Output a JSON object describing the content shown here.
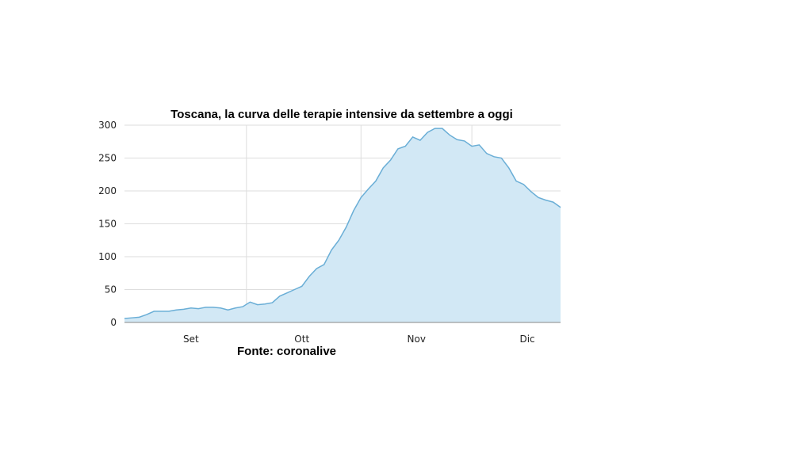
{
  "source_label": "Fonte: coronalive",
  "chart_data": {
    "type": "area",
    "title": "Toscana, la curva delle terapie intensive da settembre a oggi",
    "xlabel": "",
    "ylabel": "",
    "ylim": [
      0,
      300
    ],
    "yticks": [
      0,
      50,
      100,
      150,
      200,
      250,
      300
    ],
    "yticks_labels": [
      "0",
      "50",
      "100",
      "150",
      "200",
      "250",
      "300"
    ],
    "xticks": [
      "2020-09-01",
      "2020-10-01",
      "2020-11-01",
      "2020-12-01"
    ],
    "xticks_labels": [
      "Set",
      "Ott",
      "Nov",
      "Dic"
    ],
    "grid": true,
    "color_line": "#6aaed6",
    "color_fill": "#d2e8f5",
    "x": [
      "2020-08-14",
      "2020-08-16",
      "2020-08-18",
      "2020-08-20",
      "2020-08-22",
      "2020-08-24",
      "2020-08-26",
      "2020-08-28",
      "2020-08-30",
      "2020-09-01",
      "2020-09-03",
      "2020-09-05",
      "2020-09-07",
      "2020-09-09",
      "2020-09-11",
      "2020-09-13",
      "2020-09-15",
      "2020-09-17",
      "2020-09-19",
      "2020-09-21",
      "2020-09-23",
      "2020-09-25",
      "2020-09-27",
      "2020-09-29",
      "2020-10-01",
      "2020-10-03",
      "2020-10-05",
      "2020-10-07",
      "2020-10-09",
      "2020-10-11",
      "2020-10-13",
      "2020-10-15",
      "2020-10-17",
      "2020-10-19",
      "2020-10-21",
      "2020-10-23",
      "2020-10-25",
      "2020-10-27",
      "2020-10-29",
      "2020-10-31",
      "2020-11-02",
      "2020-11-04",
      "2020-11-06",
      "2020-11-08",
      "2020-11-10",
      "2020-11-12",
      "2020-11-14",
      "2020-11-16",
      "2020-11-18",
      "2020-11-20",
      "2020-11-22",
      "2020-11-24",
      "2020-11-26",
      "2020-11-28",
      "2020-11-30",
      "2020-12-02",
      "2020-12-04",
      "2020-12-06",
      "2020-12-08",
      "2020-12-10"
    ],
    "series": [
      {
        "values": [
          6,
          7,
          8,
          12,
          17,
          17,
          17,
          19,
          20,
          22,
          21,
          23,
          23,
          22,
          19,
          22,
          24,
          31,
          27,
          28,
          30,
          40,
          45,
          50,
          55,
          70,
          82,
          88,
          110,
          125,
          145,
          170,
          190,
          203,
          215,
          235,
          247,
          264,
          268,
          282,
          277,
          289,
          295,
          295,
          285,
          278,
          276,
          268,
          270,
          257,
          252,
          250,
          235,
          215,
          210,
          199,
          190,
          186,
          183,
          175
        ]
      }
    ]
  }
}
